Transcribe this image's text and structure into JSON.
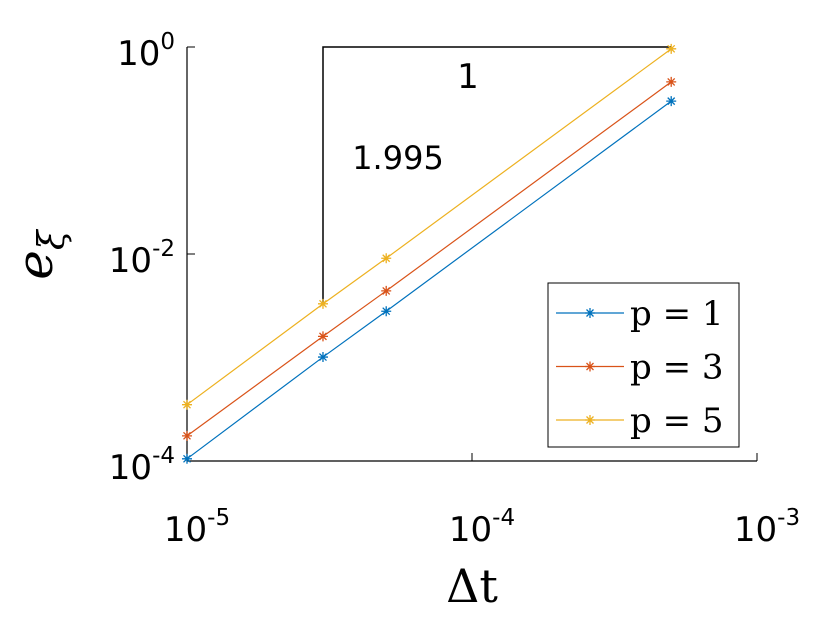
{
  "chart_data": {
    "type": "line",
    "xlabel": "Δt",
    "ylabel": {
      "base": "e",
      "subscript": "ξ"
    },
    "xscale": "log",
    "yscale": "log",
    "xlim": [
      1e-05,
      0.001
    ],
    "ylim": [
      0.0001,
      1
    ],
    "xticks": [
      {
        "value": 1e-05,
        "label": "10",
        "exponent": "-5"
      },
      {
        "value": 0.0001,
        "label": "10",
        "exponent": "-4"
      },
      {
        "value": 0.001,
        "label": "10",
        "exponent": "-3"
      }
    ],
    "yticks": [
      {
        "value": 0.0001,
        "label": "10",
        "exponent": "-4"
      },
      {
        "value": 0.01,
        "label": "10",
        "exponent": "-2"
      },
      {
        "value": 1,
        "label": "10",
        "exponent": "0"
      }
    ],
    "x": [
      1e-05,
      3e-05,
      5e-05,
      0.0005
    ],
    "series": [
      {
        "name": "p = 1",
        "color": "#0072bd",
        "values": [
          0.000105,
          0.00101,
          0.0028,
          0.3
        ]
      },
      {
        "name": "p = 3",
        "color": "#d95319",
        "values": [
          0.000175,
          0.0016,
          0.0044,
          0.46
        ]
      },
      {
        "name": "p = 5",
        "color": "#edb120",
        "values": [
          0.00035,
          0.0033,
          0.0091,
          0.96
        ]
      }
    ],
    "annotations": [
      "1",
      "1.995"
    ],
    "legend": "lower right"
  }
}
